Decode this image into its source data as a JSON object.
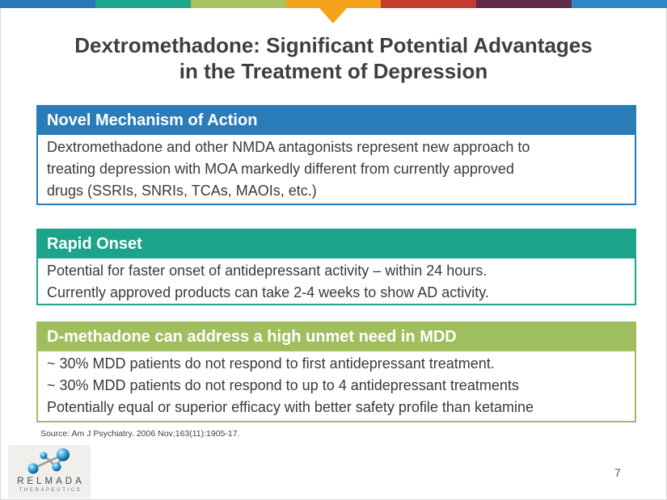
{
  "top_bar": {
    "segment_colors": [
      "#2878b8",
      "#1ea78c",
      "#a5c35e",
      "#f5a21b",
      "#c53b30",
      "#5f2b47",
      "#2e86c6"
    ],
    "arrow_color": "#f5a21b"
  },
  "title": {
    "line1": "Dextromethadone: Significant Potential Advantages",
    "line2": "in the Treatment of Depression"
  },
  "boxes": [
    {
      "header": "Novel Mechanism of Action",
      "color": "#2a7cb9",
      "lines": [
        "Dextromethadone and other NMDA antagonists represent new approach to",
        "treating depression with MOA markedly different from currently approved",
        "drugs (SSRIs, SNRIs, TCAs, MAOIs, etc.)"
      ]
    },
    {
      "header": "Rapid Onset",
      "color": "#1ca48a",
      "lines": [
        "Potential for faster onset of antidepressant activity – within 24 hours.",
        "Currently approved products can take 2-4 weeks to show AD activity."
      ]
    },
    {
      "header": "D-methadone can address a high unmet need in MDD",
      "color": "#9fbf5e",
      "lines": [
        "~ 30% MDD patients do not respond to first antidepressant treatment.",
        "~ 30% MDD patients do not respond to up to 4 antidepressant treatments",
        "Potentially equal or superior efficacy with better safety profile than ketamine"
      ]
    }
  ],
  "source": "Source: Am J Psychiatry. 2006 Nov;163(11):1905-17.",
  "logo": {
    "name": "RELMADA",
    "subtitle": "THERAPEUTICS"
  },
  "page_number": "7"
}
